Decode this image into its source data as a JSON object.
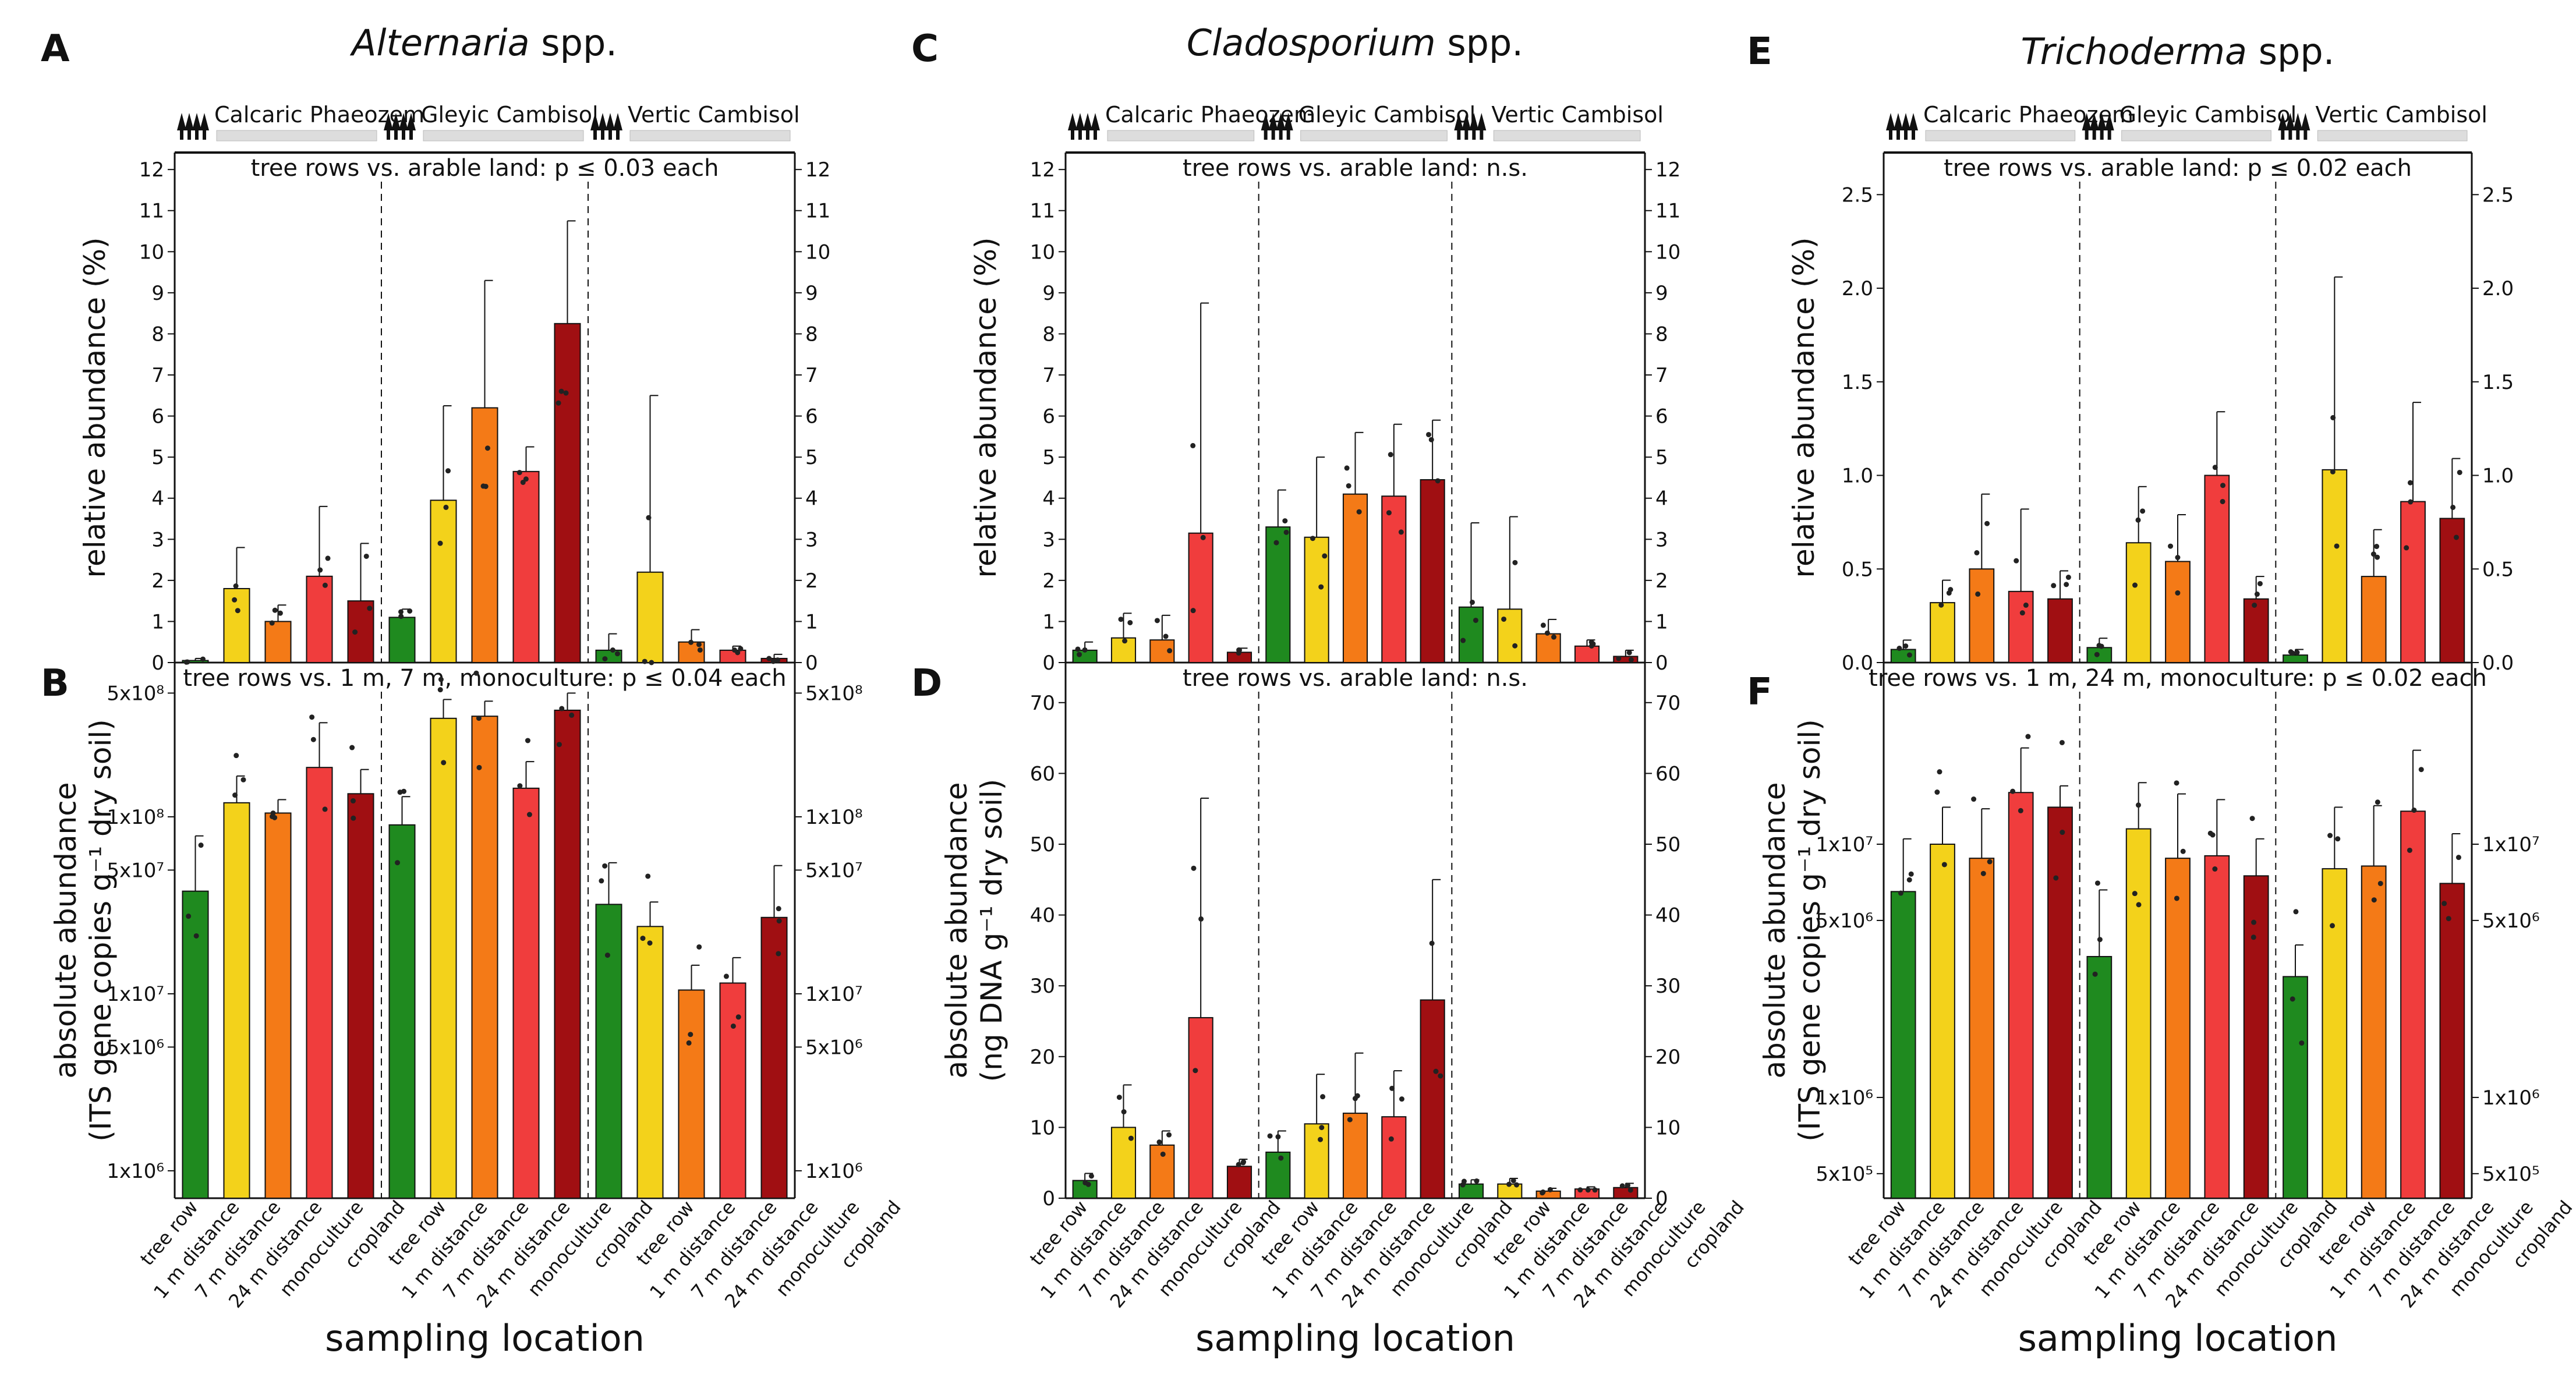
{
  "figure": {
    "xlabel": "sampling location",
    "soils": [
      "Calcaric Phaeozem",
      "Gleyic Cambisol",
      "Vertic Cambisol"
    ],
    "colors": {
      "tree row": "#1f8a1f",
      "1 m distance": "#f3d21b",
      "7 m distance": "#f47a17",
      "24 m distance": "#f03d3d",
      "monoculture": "#f03d3d",
      "cropland": "#a00f12"
    }
  },
  "chart_data": [
    {
      "panel": "A",
      "type": "bar",
      "title": "Alternaria spp.",
      "title_italic": "Alternaria",
      "title_rest": " spp.",
      "ylabel": "relative abundance (%)",
      "scale": "linear",
      "ylim": [
        0,
        12.3
      ],
      "yticks": [
        0,
        1,
        2,
        3,
        4,
        5,
        6,
        7,
        8,
        9,
        10,
        11,
        12
      ],
      "stat_text": "tree rows vs. arable land: p ≤ 0.03 each",
      "groups": [
        {
          "soil": "Calcaric Phaeozem",
          "categories": [
            "tree row",
            "1 m distance",
            "7 m distance",
            "24 m distance",
            "cropland"
          ],
          "values": [
            0.05,
            1.8,
            1.0,
            2.1,
            1.5
          ],
          "errors": [
            0.05,
            1.0,
            0.4,
            1.7,
            1.4
          ]
        },
        {
          "soil": "Gleyic Cambisol",
          "categories": [
            "tree row",
            "1 m distance",
            "7 m distance",
            "monoculture",
            "cropland"
          ],
          "values": [
            1.1,
            3.95,
            6.2,
            4.65,
            8.25
          ],
          "errors": [
            0.2,
            2.3,
            3.1,
            0.6,
            2.5
          ]
        },
        {
          "soil": "Vertic Cambisol",
          "categories": [
            "tree row",
            "1 m distance",
            "7 m distance",
            "24 m distance",
            "cropland"
          ],
          "values": [
            0.3,
            2.2,
            0.5,
            0.3,
            0.1
          ],
          "errors": [
            0.4,
            4.3,
            0.3,
            0.1,
            0.1
          ]
        }
      ]
    },
    {
      "panel": "B",
      "type": "bar",
      "ylabel_line1": "absolute abundance",
      "ylabel_line2": "(ITS gene copies g⁻¹ dry soil)",
      "scale": "log",
      "ylim": [
        700000,
        700000000
      ],
      "yticks": [
        1000000,
        5000000,
        10000000,
        50000000,
        100000000,
        500000000
      ],
      "yticklabels": [
        "1x10⁶",
        "5x10⁶",
        "1x10⁷",
        "5x10⁷",
        "1x10⁸",
        "5x10⁸"
      ],
      "stat_text": "tree rows vs. 1 m, 7 m, monoculture: p ≤ 0.04 each",
      "categories": [
        "tree row",
        "1 m distance",
        "7 m distance",
        "24 m distance",
        "monoculture",
        "cropland",
        "tree row",
        "1 m distance",
        "7 m distance",
        "24 m distance",
        "monoculture",
        "cropland",
        "tree row",
        "1 m distance",
        "7 m distance",
        "24 m distance",
        "monoculture",
        "cropland"
      ],
      "groups": [
        {
          "soil": "Calcaric Phaeozem",
          "categories": [
            "tree row",
            "1 m distance",
            "7 m distance",
            "24 m distance",
            "cropland"
          ],
          "values": [
            38000000,
            120000000,
            105000000,
            190000000,
            135000000
          ],
          "errors": [
            40000000,
            50000000,
            20000000,
            150000000,
            50000000
          ]
        },
        {
          "soil": "Gleyic Cambisol",
          "categories": [
            "tree row",
            "1 m distance",
            "7 m distance",
            "monoculture",
            "cropland"
          ],
          "values": [
            90000000,
            360000000,
            370000000,
            145000000,
            400000000
          ],
          "errors": [
            40000000,
            100000000,
            80000000,
            60000000,
            100000000
          ]
        },
        {
          "soil": "Vertic Cambisol",
          "categories": [
            "tree row",
            "1 m distance",
            "7 m distance",
            "24 m distance",
            "cropland"
          ],
          "values": [
            32000000,
            24000000,
            10500000,
            11500000,
            27000000
          ],
          "errors": [
            23000000,
            9000000,
            4000000,
            4500000,
            26000000
          ]
        }
      ]
    },
    {
      "panel": "C",
      "type": "bar",
      "title": "Cladosporium spp.",
      "title_italic": "Cladosporium",
      "title_rest": " spp.",
      "ylabel": "relative abundance (%)",
      "scale": "linear",
      "ylim": [
        0,
        12.3
      ],
      "yticks": [
        0,
        1,
        2,
        3,
        4,
        5,
        6,
        7,
        8,
        9,
        10,
        11,
        12
      ],
      "stat_text": "tree rows vs. arable land: n.s.",
      "groups": [
        {
          "soil": "Calcaric Phaeozem",
          "categories": [
            "tree row",
            "1 m distance",
            "7 m distance",
            "24 m distance",
            "cropland"
          ],
          "values": [
            0.3,
            0.6,
            0.55,
            3.15,
            0.25
          ],
          "errors": [
            0.2,
            0.6,
            0.6,
            5.6,
            0.1
          ]
        },
        {
          "soil": "Gleyic Cambisol",
          "categories": [
            "tree row",
            "1 m distance",
            "7 m distance",
            "monoculture",
            "cropland"
          ],
          "values": [
            3.3,
            3.05,
            4.1,
            4.05,
            4.45
          ],
          "errors": [
            0.9,
            1.95,
            1.5,
            1.75,
            1.45
          ]
        },
        {
          "soil": "Vertic Cambisol",
          "categories": [
            "tree row",
            "1 m distance",
            "7 m distance",
            "24 m distance",
            "cropland"
          ],
          "values": [
            1.35,
            1.3,
            0.7,
            0.4,
            0.15
          ],
          "errors": [
            2.05,
            2.25,
            0.35,
            0.15,
            0.15
          ]
        }
      ]
    },
    {
      "panel": "D",
      "type": "bar",
      "ylabel_line1": "absolute abundance",
      "ylabel_line2": "(ng DNA g⁻¹ dry soil)",
      "scale": "linear",
      "ylim": [
        0,
        75
      ],
      "yticks": [
        0,
        10,
        20,
        30,
        40,
        50,
        60,
        70
      ],
      "stat_text": "tree rows vs. arable land: n.s.",
      "categories": [
        "tree row",
        "1 m distance",
        "7 m distance",
        "24 m distance",
        "monoculture",
        "cropland",
        "tree row",
        "1 m distance",
        "7 m distance",
        "24 m distance",
        "monoculture",
        "cropland",
        "tree row",
        "1 m distance",
        "7 m distance",
        "24 m distance",
        "monoculture",
        "cropland"
      ],
      "groups": [
        {
          "soil": "Calcaric Phaeozem",
          "categories": [
            "tree row",
            "1 m distance",
            "7 m distance",
            "24 m distance",
            "cropland"
          ],
          "values": [
            2.5,
            10.0,
            7.5,
            25.5,
            4.5
          ],
          "errors": [
            1.0,
            6.0,
            2.0,
            31.0,
            1.0
          ]
        },
        {
          "soil": "Gleyic Cambisol",
          "categories": [
            "tree row",
            "1 m distance",
            "7 m distance",
            "monoculture",
            "cropland"
          ],
          "values": [
            6.5,
            10.5,
            12.0,
            11.5,
            28.0
          ],
          "errors": [
            3.0,
            7.0,
            8.5,
            6.5,
            17.0
          ]
        },
        {
          "soil": "Vertic Cambisol",
          "categories": [
            "tree row",
            "1 m distance",
            "7 m distance",
            "24 m distance",
            "cropland"
          ],
          "values": [
            2.0,
            2.0,
            1.0,
            1.3,
            1.5
          ],
          "errors": [
            0.6,
            0.8,
            0.4,
            0.3,
            0.6
          ]
        }
      ]
    },
    {
      "panel": "E",
      "type": "bar",
      "title": "Trichoderma spp.",
      "title_italic": "Trichoderma",
      "title_rest": " spp.",
      "ylabel": "relative abundance (%)",
      "scale": "linear",
      "ylim": [
        0,
        2.7
      ],
      "yticks": [
        0.0,
        0.5,
        1.0,
        1.5,
        2.0,
        2.5
      ],
      "yticklabels": [
        "0.0",
        "0.5",
        "1.0",
        "1.5",
        "2.0",
        "2.5"
      ],
      "stat_text": "tree rows vs. arable land: p ≤ 0.02 each",
      "groups": [
        {
          "soil": "Calcaric Phaeozem",
          "categories": [
            "tree row",
            "1 m distance",
            "7 m distance",
            "24 m distance",
            "cropland"
          ],
          "values": [
            0.07,
            0.32,
            0.5,
            0.38,
            0.34
          ],
          "errors": [
            0.05,
            0.12,
            0.4,
            0.44,
            0.15
          ]
        },
        {
          "soil": "Gleyic Cambisol",
          "categories": [
            "tree row",
            "1 m distance",
            "7 m distance",
            "monoculture",
            "cropland"
          ],
          "values": [
            0.08,
            0.64,
            0.54,
            1.0,
            0.34
          ],
          "errors": [
            0.05,
            0.3,
            0.25,
            0.34,
            0.12
          ]
        },
        {
          "soil": "Vertic Cambisol",
          "categories": [
            "tree row",
            "1 m distance",
            "7 m distance",
            "24 m distance",
            "cropland"
          ],
          "values": [
            0.04,
            1.03,
            0.46,
            0.86,
            0.77
          ],
          "errors": [
            0.03,
            1.03,
            0.25,
            0.53,
            0.32
          ]
        }
      ]
    },
    {
      "panel": "F",
      "type": "bar",
      "ylabel_line1": "absolute abundance",
      "ylabel_line2": "(ITS gene copies g⁻¹ dry soil)",
      "scale": "log",
      "ylim": [
        400000,
        50000000
      ],
      "yticks": [
        500000,
        1000000,
        5000000,
        10000000
      ],
      "yticklabels": [
        "5x10⁵",
        "1x10⁶",
        "5x10⁶",
        "1x10⁷"
      ],
      "stat_text": "tree rows vs. 1 m, 24 m, monoculture: p ≤ 0.02 each",
      "categories": [
        "tree row",
        "1 m distance",
        "7 m distance",
        "24 m distance",
        "monoculture",
        "cropland",
        "tree row",
        "1 m distance",
        "7 m distance",
        "24 m distance",
        "monoculture",
        "cropland",
        "tree row",
        "1 m distance",
        "7 m distance",
        "24 m distance",
        "monoculture",
        "cropland"
      ],
      "groups": [
        {
          "soil": "Calcaric Phaeozem",
          "categories": [
            "tree row",
            "1 m distance",
            "7 m distance",
            "24 m distance",
            "cropland"
          ],
          "values": [
            6500000,
            10000000,
            8800000,
            16000000,
            14000000
          ],
          "errors": [
            4000000,
            4000000,
            5000000,
            8000000,
            3000000
          ]
        },
        {
          "soil": "Gleyic Cambisol",
          "categories": [
            "tree row",
            "1 m distance",
            "7 m distance",
            "monoculture",
            "cropland"
          ],
          "values": [
            3600000,
            11500000,
            8800000,
            9000000,
            7500000
          ],
          "errors": [
            3000000,
            6000000,
            7000000,
            6000000,
            3000000
          ]
        },
        {
          "soil": "Vertic Cambisol",
          "categories": [
            "tree row",
            "1 m distance",
            "7 m distance",
            "24 m distance",
            "cropland"
          ],
          "values": [
            3000000,
            8000000,
            8200000,
            13500000,
            7000000
          ],
          "errors": [
            1000000,
            6000000,
            6000000,
            10000000,
            4000000
          ]
        }
      ]
    }
  ]
}
